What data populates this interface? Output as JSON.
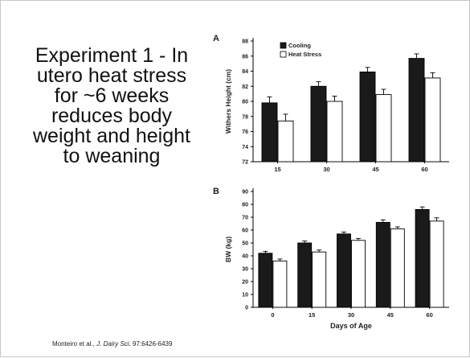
{
  "headline": "Experiment 1 - In utero heat stress for ~6 weeks reduces body weight and height to weaning",
  "citation": {
    "authors": "Monteiro et al., ",
    "journal": "J. Dairy Sci.",
    "ref": " 97:6426-6439"
  },
  "colors": {
    "Cooling": "#1a1a1a",
    "Heat Stress": "#ffffff"
  },
  "chart_data": [
    {
      "panel": "A",
      "type": "bar",
      "ylabel": "Withers Height (cm)",
      "xlabel": "",
      "categories": [
        "15",
        "30",
        "45",
        "60"
      ],
      "ylim": [
        72,
        88
      ],
      "yticks": [
        72,
        74,
        76,
        78,
        80,
        82,
        84,
        86,
        88
      ],
      "legend": "top-left",
      "series": [
        {
          "name": "Cooling",
          "values": [
            79.8,
            82.0,
            83.9,
            85.7
          ],
          "errors": [
            0.8,
            0.6,
            0.6,
            0.6
          ]
        },
        {
          "name": "Heat Stress",
          "values": [
            77.4,
            80.0,
            80.9,
            83.1
          ],
          "errors": [
            0.9,
            0.7,
            0.7,
            0.7
          ]
        }
      ]
    },
    {
      "panel": "B",
      "type": "bar",
      "ylabel": "BW (kg)",
      "xlabel": "Days of Age",
      "categories": [
        "0",
        "15",
        "30",
        "45",
        "60"
      ],
      "ylim": [
        0,
        90
      ],
      "yticks": [
        0,
        10,
        20,
        30,
        40,
        50,
        60,
        70,
        80,
        90
      ],
      "series": [
        {
          "name": "Cooling",
          "values": [
            42,
            50,
            57,
            66,
            76
          ],
          "errors": [
            1.5,
            1.5,
            1.5,
            2,
            2
          ]
        },
        {
          "name": "Heat Stress",
          "values": [
            36,
            43,
            52,
            61,
            67
          ],
          "errors": [
            1.5,
            1.5,
            1.5,
            1.5,
            2.5
          ]
        }
      ]
    }
  ]
}
